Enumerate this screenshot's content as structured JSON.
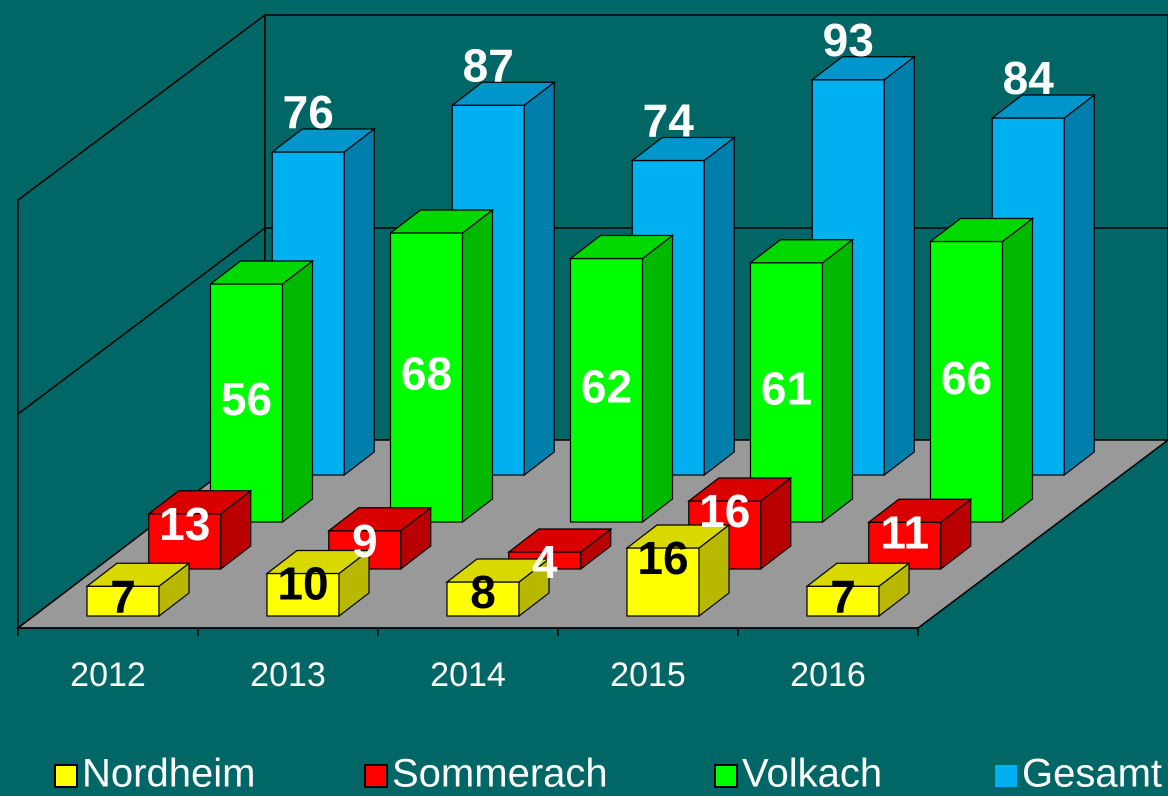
{
  "chart_data": {
    "type": "bar3d",
    "categories": [
      "2012",
      "2013",
      "2014",
      "2015",
      "2016"
    ],
    "series": [
      {
        "name": "Nordheim",
        "color": "#ffff00",
        "values": [
          7,
          10,
          8,
          16,
          7
        ]
      },
      {
        "name": "Sommerach",
        "color": "#ff0000",
        "values": [
          13,
          9,
          4,
          16,
          11
        ]
      },
      {
        "name": "Volkach",
        "color": "#00ff00",
        "values": [
          56,
          68,
          62,
          61,
          66
        ]
      },
      {
        "name": "Gesamt",
        "color": "#00b0f0",
        "values": [
          76,
          87,
          74,
          93,
          84
        ]
      }
    ],
    "ylim": [
      0,
      100
    ],
    "legend": "bottom"
  }
}
